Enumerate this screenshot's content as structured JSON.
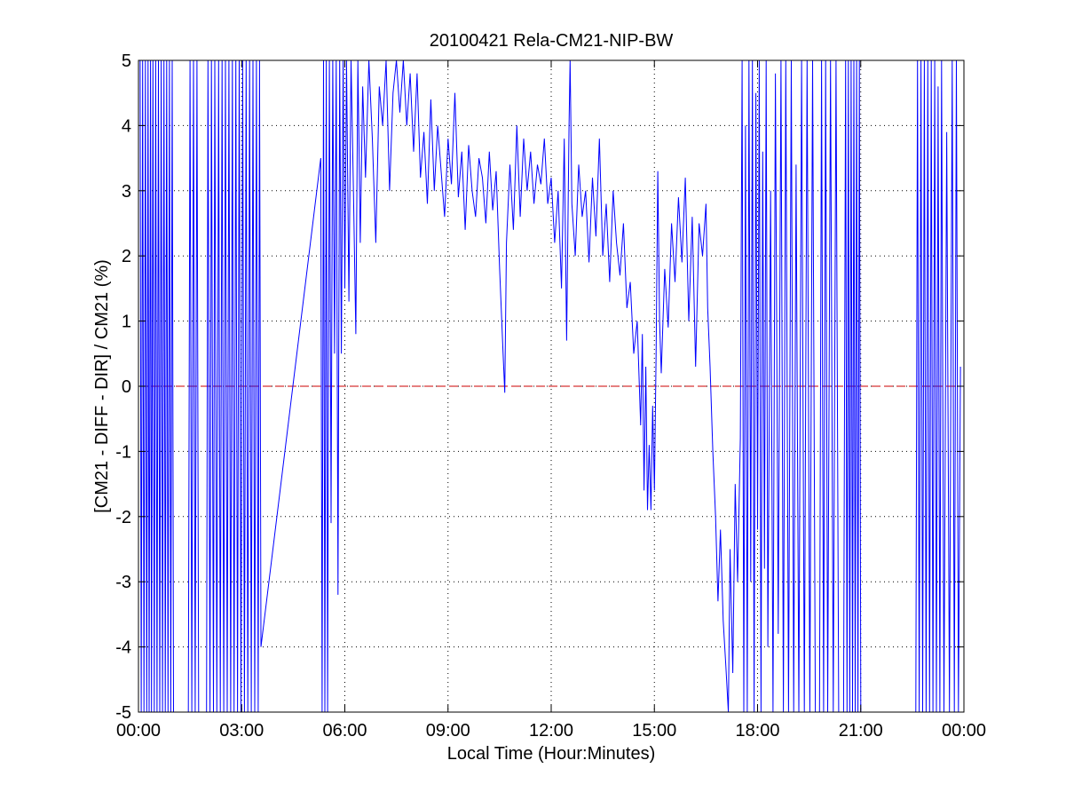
{
  "chart_data": {
    "type": "line",
    "title": "20100421 Rela-CM21-NIP-BW",
    "xlabel": "Local Time (Hour:Minutes)",
    "ylabel": "[CM21 - DIFF - DIR] / CM21 (%)",
    "xlim": [
      0,
      24
    ],
    "ylim": [
      -5,
      5
    ],
    "x_ticks": [
      0,
      3,
      6,
      9,
      12,
      15,
      18,
      21,
      24
    ],
    "x_tick_labels": [
      "00:00",
      "03:00",
      "06:00",
      "09:00",
      "12:00",
      "15:00",
      "18:00",
      "21:00",
      "00:00"
    ],
    "y_ticks": [
      5,
      4,
      3,
      2,
      1,
      0,
      -1,
      -2,
      -3,
      -4,
      -5
    ],
    "y_tick_labels": [
      "5",
      "4",
      "3",
      "2",
      "1",
      "0",
      "-1",
      "-2",
      "-3",
      "-4",
      "-5"
    ],
    "grid": true,
    "legend": "none",
    "reference_line": {
      "y": 0,
      "color": "#cc0000",
      "style": "dashed"
    },
    "series": [
      {
        "color": "#0000ff",
        "points": [
          [
            0.05,
            5
          ],
          [
            0.08,
            -5
          ],
          [
            0.12,
            5
          ],
          [
            0.16,
            -5
          ],
          [
            0.2,
            5
          ],
          [
            0.24,
            -5
          ],
          [
            0.28,
            5
          ],
          [
            0.31,
            -5
          ],
          [
            0.35,
            5
          ],
          [
            0.38,
            -5
          ],
          [
            0.42,
            5
          ],
          [
            0.46,
            -5
          ],
          [
            0.5,
            5
          ],
          [
            0.54,
            -5
          ],
          [
            0.58,
            5
          ],
          [
            0.62,
            -5
          ],
          [
            0.66,
            5
          ],
          [
            0.7,
            -5
          ],
          [
            0.74,
            5
          ],
          [
            0.78,
            -5
          ],
          [
            0.82,
            5
          ],
          [
            0.86,
            -5
          ],
          [
            0.9,
            5
          ],
          [
            0.94,
            -5
          ],
          [
            0.98,
            5
          ],
          [
            1.02,
            -5
          ],
          [
            1.45,
            -5
          ],
          [
            1.5,
            5
          ],
          [
            1.55,
            -5
          ],
          [
            1.6,
            5
          ],
          [
            1.65,
            -5
          ],
          [
            1.7,
            5
          ],
          [
            1.75,
            -5
          ],
          [
            1.98,
            -5
          ],
          [
            2.02,
            5
          ],
          [
            2.08,
            -5
          ],
          [
            2.12,
            5
          ],
          [
            2.18,
            -5
          ],
          [
            2.22,
            5
          ],
          [
            2.28,
            -5
          ],
          [
            2.33,
            5
          ],
          [
            2.38,
            -5
          ],
          [
            2.43,
            5
          ],
          [
            2.48,
            -5
          ],
          [
            2.53,
            5
          ],
          [
            2.58,
            -5
          ],
          [
            2.63,
            5
          ],
          [
            2.68,
            -5
          ],
          [
            2.73,
            5
          ],
          [
            2.78,
            -5
          ],
          [
            2.83,
            5
          ],
          [
            2.88,
            -5
          ],
          [
            2.93,
            5
          ],
          [
            2.98,
            -5
          ],
          [
            3.03,
            5
          ],
          [
            3.08,
            -5
          ],
          [
            3.13,
            5
          ],
          [
            3.18,
            -5
          ],
          [
            3.23,
            5
          ],
          [
            3.28,
            -5
          ],
          [
            3.33,
            5
          ],
          [
            3.38,
            -5
          ],
          [
            3.43,
            5
          ],
          [
            3.48,
            -5
          ],
          [
            3.52,
            5
          ],
          [
            3.56,
            -4.0
          ],
          [
            5.3,
            3.5
          ],
          [
            5.34,
            -5
          ],
          [
            5.38,
            5
          ],
          [
            5.42,
            -5
          ],
          [
            5.46,
            5
          ],
          [
            5.5,
            -5
          ],
          [
            5.55,
            5
          ],
          [
            5.6,
            -2.1
          ],
          [
            5.65,
            5
          ],
          [
            5.7,
            0.5
          ],
          [
            5.75,
            5
          ],
          [
            5.8,
            -3.2
          ],
          [
            5.85,
            5
          ],
          [
            5.9,
            0.5
          ],
          [
            5.95,
            5
          ],
          [
            6.0,
            1.5
          ],
          [
            6.05,
            5
          ],
          [
            6.12,
            1.3
          ],
          [
            6.18,
            5
          ],
          [
            6.25,
            3.0
          ],
          [
            6.32,
            0.8
          ],
          [
            6.38,
            5
          ],
          [
            6.45,
            2.2
          ],
          [
            6.52,
            4.6
          ],
          [
            6.6,
            3.2
          ],
          [
            6.7,
            5
          ],
          [
            6.8,
            3.8
          ],
          [
            6.9,
            2.2
          ],
          [
            7.0,
            4.6
          ],
          [
            7.1,
            4.0
          ],
          [
            7.2,
            5
          ],
          [
            7.3,
            3.0
          ],
          [
            7.4,
            4.5
          ],
          [
            7.5,
            5
          ],
          [
            7.6,
            4.2
          ],
          [
            7.7,
            5
          ],
          [
            7.8,
            4.0
          ],
          [
            7.9,
            4.8
          ],
          [
            8.0,
            3.6
          ],
          [
            8.1,
            4.8
          ],
          [
            8.2,
            3.2
          ],
          [
            8.3,
            3.9
          ],
          [
            8.4,
            2.8
          ],
          [
            8.5,
            4.4
          ],
          [
            8.6,
            3.0
          ],
          [
            8.7,
            4.0
          ],
          [
            8.8,
            3.3
          ],
          [
            8.9,
            2.6
          ],
          [
            9.0,
            3.8
          ],
          [
            9.1,
            3.1
          ],
          [
            9.2,
            4.5
          ],
          [
            9.3,
            2.9
          ],
          [
            9.4,
            3.6
          ],
          [
            9.5,
            2.4
          ],
          [
            9.6,
            3.7
          ],
          [
            9.7,
            3.0
          ],
          [
            9.8,
            2.6
          ],
          [
            9.9,
            3.5
          ],
          [
            10.0,
            3.2
          ],
          [
            10.1,
            2.5
          ],
          [
            10.2,
            3.6
          ],
          [
            10.3,
            2.7
          ],
          [
            10.4,
            3.3
          ],
          [
            10.5,
            1.8
          ],
          [
            10.6,
            0.5
          ],
          [
            10.65,
            -0.1
          ],
          [
            10.7,
            2.2
          ],
          [
            10.8,
            3.4
          ],
          [
            10.9,
            2.4
          ],
          [
            11.0,
            4.0
          ],
          [
            11.1,
            2.6
          ],
          [
            11.2,
            3.8
          ],
          [
            11.3,
            3.0
          ],
          [
            11.4,
            3.6
          ],
          [
            11.5,
            2.8
          ],
          [
            11.6,
            3.4
          ],
          [
            11.7,
            3.1
          ],
          [
            11.8,
            3.8
          ],
          [
            11.9,
            2.8
          ],
          [
            12.0,
            3.2
          ],
          [
            12.1,
            2.2
          ],
          [
            12.2,
            3.0
          ],
          [
            12.3,
            1.5
          ],
          [
            12.38,
            3.8
          ],
          [
            12.45,
            0.7
          ],
          [
            12.52,
            4.0
          ],
          [
            12.55,
            5
          ],
          [
            12.6,
            2.8
          ],
          [
            12.7,
            2.0
          ],
          [
            12.8,
            3.4
          ],
          [
            12.9,
            2.6
          ],
          [
            13.0,
            3.0
          ],
          [
            13.1,
            1.9
          ],
          [
            13.2,
            3.2
          ],
          [
            13.3,
            2.3
          ],
          [
            13.4,
            3.8
          ],
          [
            13.5,
            2.0
          ],
          [
            13.6,
            2.8
          ],
          [
            13.7,
            1.6
          ],
          [
            13.8,
            3.0
          ],
          [
            13.9,
            2.2
          ],
          [
            14.0,
            1.7
          ],
          [
            14.1,
            2.5
          ],
          [
            14.2,
            1.2
          ],
          [
            14.3,
            1.6
          ],
          [
            14.4,
            0.5
          ],
          [
            14.5,
            1.0
          ],
          [
            14.6,
            -0.6
          ],
          [
            14.65,
            0.8
          ],
          [
            14.7,
            -1.6
          ],
          [
            14.75,
            0.3
          ],
          [
            14.8,
            -1.9
          ],
          [
            14.85,
            -0.9
          ],
          [
            14.9,
            -1.9
          ],
          [
            14.95,
            -0.3
          ],
          [
            15.0,
            -1.6
          ],
          [
            15.05,
            0.5
          ],
          [
            15.1,
            3.3
          ],
          [
            15.15,
            1.0
          ],
          [
            15.2,
            0.2
          ],
          [
            15.3,
            1.8
          ],
          [
            15.4,
            0.9
          ],
          [
            15.5,
            2.5
          ],
          [
            15.6,
            1.6
          ],
          [
            15.7,
            2.9
          ],
          [
            15.8,
            1.9
          ],
          [
            15.9,
            3.2
          ],
          [
            16.0,
            1.0
          ],
          [
            16.1,
            2.6
          ],
          [
            16.2,
            0.3
          ],
          [
            16.3,
            2.5
          ],
          [
            16.4,
            2.0
          ],
          [
            16.5,
            2.8
          ],
          [
            16.55,
            1.2
          ],
          [
            16.62,
            0.3
          ],
          [
            16.7,
            -1.0
          ],
          [
            16.78,
            -2.0
          ],
          [
            16.85,
            -3.3
          ],
          [
            16.92,
            -2.2
          ],
          [
            17.0,
            -3.6
          ],
          [
            17.08,
            -4.3
          ],
          [
            17.15,
            -5
          ],
          [
            17.2,
            -2.5
          ],
          [
            17.28,
            -4.4
          ],
          [
            17.35,
            -1.5
          ],
          [
            17.42,
            -3.0
          ],
          [
            17.5,
            -0.8
          ],
          [
            17.55,
            5
          ],
          [
            17.6,
            -5
          ],
          [
            17.65,
            4.0
          ],
          [
            17.7,
            -5
          ],
          [
            17.75,
            5
          ],
          [
            17.8,
            -3.0
          ],
          [
            17.85,
            5
          ],
          [
            17.9,
            -5
          ],
          [
            17.95,
            4.5
          ],
          [
            18.0,
            -2.2
          ],
          [
            18.05,
            5
          ],
          [
            18.1,
            -5
          ],
          [
            18.15,
            3.6
          ],
          [
            18.2,
            -2.8
          ],
          [
            18.25,
            5
          ],
          [
            18.3,
            -4.0
          ],
          [
            18.38,
            3.0
          ],
          [
            18.45,
            -5
          ],
          [
            18.52,
            4.8
          ],
          [
            18.6,
            -3.8
          ],
          [
            18.68,
            5
          ],
          [
            18.75,
            -5
          ],
          [
            18.82,
            5
          ],
          [
            18.9,
            -5
          ],
          [
            18.98,
            5
          ],
          [
            19.05,
            -5
          ],
          [
            19.12,
            3.4
          ],
          [
            19.2,
            -5
          ],
          [
            19.28,
            5
          ],
          [
            19.36,
            -5
          ],
          [
            19.44,
            5
          ],
          [
            19.52,
            -5
          ],
          [
            19.6,
            5
          ],
          [
            19.68,
            -5
          ],
          [
            19.8,
            -5
          ],
          [
            19.86,
            5
          ],
          [
            19.92,
            -5
          ],
          [
            19.98,
            5
          ],
          [
            20.04,
            -5
          ],
          [
            20.12,
            5
          ],
          [
            20.2,
            -5
          ],
          [
            20.28,
            5
          ],
          [
            20.36,
            -5
          ],
          [
            20.5,
            -5
          ],
          [
            20.56,
            5
          ],
          [
            20.6,
            -5
          ],
          [
            20.64,
            5
          ],
          [
            20.68,
            -5
          ],
          [
            20.72,
            5
          ],
          [
            20.76,
            -5
          ],
          [
            20.8,
            5
          ],
          [
            20.84,
            -5
          ],
          [
            20.88,
            5
          ],
          [
            20.92,
            -5
          ],
          [
            20.96,
            5
          ],
          [
            21.0,
            -5
          ],
          [
            22.6,
            -5
          ],
          [
            22.65,
            5
          ],
          [
            22.7,
            -5
          ],
          [
            22.75,
            5
          ],
          [
            22.8,
            -5
          ],
          [
            22.85,
            5
          ],
          [
            22.9,
            -5
          ],
          [
            22.95,
            5
          ],
          [
            23.0,
            -5
          ],
          [
            23.05,
            5
          ],
          [
            23.1,
            -5
          ],
          [
            23.15,
            5
          ],
          [
            23.2,
            -5
          ],
          [
            23.25,
            4.6
          ],
          [
            23.3,
            -5
          ],
          [
            23.35,
            5
          ],
          [
            23.42,
            -5
          ],
          [
            23.5,
            3.9
          ],
          [
            23.58,
            -5
          ],
          [
            23.66,
            5
          ],
          [
            23.72,
            -5
          ],
          [
            23.78,
            5
          ],
          [
            23.84,
            -5
          ],
          [
            23.9,
            0.3
          ]
        ]
      }
    ]
  }
}
